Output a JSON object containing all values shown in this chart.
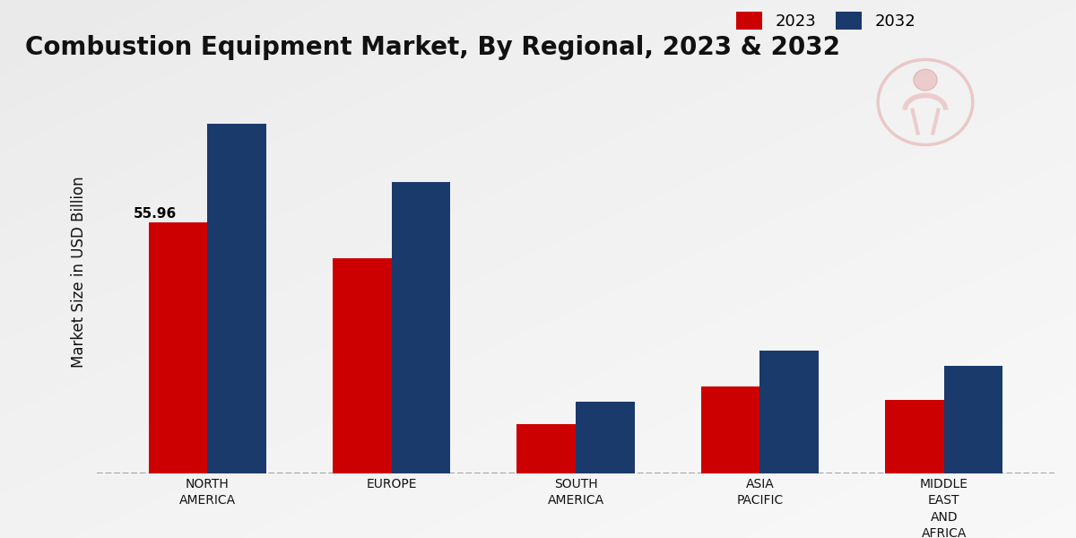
{
  "title": "Combustion Equipment Market, By Regional, 2023 & 2032",
  "ylabel": "Market Size in USD Billion",
  "categories": [
    "NORTH\nAMERICA",
    "EUROPE",
    "SOUTH\nAMERICA",
    "ASIA\nPACIFIC",
    "MIDDLE\nEAST\nAND\nAFRICA"
  ],
  "values_2023": [
    55.96,
    48.0,
    11.0,
    19.5,
    16.5
  ],
  "values_2032": [
    78.0,
    65.0,
    16.0,
    27.5,
    24.0
  ],
  "bar_color_2023": "#cc0000",
  "bar_color_2032": "#1a3a6b",
  "annotation_label": "55.96",
  "bar_width": 0.32,
  "ylim": [
    0,
    90
  ],
  "title_fontsize": 20,
  "legend_fontsize": 13,
  "axis_label_fontsize": 12,
  "tick_label_fontsize": 10,
  "bg_color_light": "#e8e8e8",
  "bg_color_dark": "#c8c8c8",
  "bottom_bar_color": "#cc0000",
  "bottom_bar_height": 12
}
